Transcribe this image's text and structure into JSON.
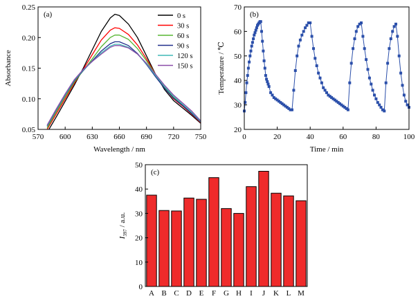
{
  "chart_data": [
    {
      "id": "a",
      "panel_label": "(a)",
      "type": "line",
      "xlabel": "Wavelength / nm",
      "ylabel": "Absorbance",
      "xlim": [
        570,
        750
      ],
      "ylim": [
        0.05,
        0.25
      ],
      "xticks": [
        570,
        600,
        630,
        660,
        690,
        720,
        750
      ],
      "yticks": [
        0.05,
        0.1,
        0.15,
        0.2,
        0.25
      ],
      "ytick_labels": [
        "0.05",
        "0.10",
        "0.15",
        "0.20",
        "0.25"
      ],
      "legend_position": "top-right",
      "series": [
        {
          "name": "0 s",
          "color": "#000000",
          "x": [
            580,
            590,
            600,
            610,
            620,
            630,
            640,
            650,
            655,
            660,
            670,
            680,
            690,
            700,
            710,
            720,
            730,
            740,
            750
          ],
          "y": [
            0.045,
            0.07,
            0.096,
            0.122,
            0.15,
            0.18,
            0.21,
            0.232,
            0.238,
            0.236,
            0.222,
            0.2,
            0.17,
            0.14,
            0.115,
            0.097,
            0.085,
            0.073,
            0.06
          ]
        },
        {
          "name": "30 s",
          "color": "#ff0000",
          "x": [
            580,
            590,
            600,
            610,
            620,
            630,
            640,
            650,
            655,
            660,
            670,
            680,
            690,
            700,
            710,
            720,
            730,
            740,
            750
          ],
          "y": [
            0.05,
            0.075,
            0.1,
            0.125,
            0.148,
            0.172,
            0.196,
            0.212,
            0.216,
            0.215,
            0.205,
            0.188,
            0.165,
            0.14,
            0.118,
            0.1,
            0.088,
            0.075,
            0.061
          ]
        },
        {
          "name": "60 s",
          "color": "#56b531",
          "x": [
            580,
            590,
            600,
            610,
            620,
            630,
            640,
            650,
            655,
            660,
            670,
            680,
            690,
            700,
            710,
            720,
            730,
            740,
            750
          ],
          "y": [
            0.052,
            0.078,
            0.103,
            0.127,
            0.146,
            0.165,
            0.185,
            0.2,
            0.204,
            0.204,
            0.197,
            0.182,
            0.162,
            0.14,
            0.119,
            0.102,
            0.09,
            0.076,
            0.062
          ]
        },
        {
          "name": "90 s",
          "color": "#1f2e8a",
          "x": [
            580,
            590,
            600,
            610,
            620,
            630,
            640,
            650,
            655,
            660,
            670,
            680,
            690,
            700,
            710,
            720,
            730,
            740,
            750
          ],
          "y": [
            0.055,
            0.081,
            0.106,
            0.129,
            0.146,
            0.162,
            0.178,
            0.19,
            0.193,
            0.193,
            0.187,
            0.174,
            0.156,
            0.136,
            0.117,
            0.101,
            0.089,
            0.076,
            0.062
          ]
        },
        {
          "name": "120 s",
          "color": "#3fb9b5",
          "x": [
            580,
            590,
            600,
            610,
            620,
            630,
            640,
            650,
            655,
            660,
            670,
            680,
            690,
            700,
            710,
            720,
            730,
            740,
            750
          ],
          "y": [
            0.056,
            0.082,
            0.107,
            0.13,
            0.147,
            0.161,
            0.175,
            0.186,
            0.189,
            0.189,
            0.184,
            0.173,
            0.157,
            0.138,
            0.12,
            0.104,
            0.091,
            0.078,
            0.063
          ]
        },
        {
          "name": "150 s",
          "color": "#8a4aa8",
          "x": [
            580,
            590,
            600,
            610,
            620,
            630,
            640,
            650,
            655,
            660,
            670,
            680,
            690,
            700,
            710,
            720,
            730,
            740,
            750
          ],
          "y": [
            0.057,
            0.083,
            0.108,
            0.131,
            0.148,
            0.161,
            0.173,
            0.184,
            0.187,
            0.187,
            0.183,
            0.173,
            0.158,
            0.14,
            0.122,
            0.106,
            0.093,
            0.08,
            0.064
          ]
        }
      ]
    },
    {
      "id": "b",
      "panel_label": "(b)",
      "type": "line",
      "xlabel": "Time / min",
      "ylabel": "Temperature / ℃",
      "xlim": [
        0,
        100
      ],
      "ylim": [
        20,
        70
      ],
      "xticks": [
        0,
        20,
        40,
        60,
        80,
        100
      ],
      "yticks": [
        20,
        30,
        40,
        50,
        60,
        70
      ],
      "marker": "square",
      "series": [
        {
          "color": "#2b4faa",
          "x": [
            0,
            0.5,
            1,
            1.5,
            2,
            2.5,
            3,
            3.5,
            4,
            4.5,
            5,
            5.5,
            6,
            6.5,
            7,
            7.5,
            8,
            8.5,
            9,
            9.5,
            10,
            10.5,
            11,
            11.5,
            12,
            12.5,
            13,
            13.5,
            14,
            14.5,
            15,
            16,
            17,
            18,
            19,
            20,
            21,
            22,
            23,
            24,
            25,
            26,
            27,
            28,
            29,
            30,
            31,
            32,
            33,
            34,
            35,
            36,
            37,
            38,
            39,
            40,
            41,
            42,
            43,
            44,
            45,
            46,
            47,
            48,
            49,
            50,
            51,
            52,
            53,
            54,
            55,
            56,
            57,
            58,
            59,
            60,
            61,
            62,
            63,
            64,
            65,
            66,
            67,
            68,
            69,
            70,
            71,
            72,
            73,
            74,
            75,
            76,
            77,
            78,
            79,
            80,
            81,
            82,
            83,
            84,
            85,
            86,
            87,
            88,
            89,
            90,
            91,
            92,
            93,
            94,
            95,
            96,
            97,
            98,
            99,
            100
          ],
          "y": [
            27.5,
            31,
            35,
            39,
            42,
            45,
            47.5,
            50,
            52,
            54,
            55.5,
            57,
            58.5,
            59.5,
            60.5,
            61.5,
            62.5,
            63,
            63.5,
            64,
            64,
            60,
            56,
            52,
            48,
            45,
            42,
            40.5,
            39.5,
            38.5,
            37.5,
            35,
            34,
            33,
            32.5,
            32,
            31.5,
            31,
            30.5,
            30,
            29.5,
            29,
            28.5,
            28,
            28,
            36,
            44,
            50,
            54,
            56.5,
            58.5,
            60,
            61.5,
            62.5,
            63.5,
            63.5,
            58,
            53,
            49,
            46,
            43,
            41,
            39,
            37,
            36,
            35,
            34,
            33.5,
            33,
            32.5,
            32,
            31.5,
            31,
            30.5,
            30,
            29.5,
            29,
            28.5,
            28,
            39,
            47,
            53,
            57,
            60,
            62,
            63,
            63.5,
            58,
            53,
            48.5,
            44.5,
            41,
            38.5,
            36,
            34,
            32.5,
            31,
            30,
            29,
            28,
            27.5,
            39,
            47,
            53,
            57,
            60,
            62,
            63,
            58,
            50,
            43,
            38,
            34,
            31.5,
            30,
            29
          ]
        }
      ]
    },
    {
      "id": "c",
      "panel_label": "(c)",
      "type": "bar",
      "ylabel_main": "I",
      "ylabel_sub": "397",
      "ylabel_unit": " / a.u.",
      "ylim": [
        0,
        50
      ],
      "yticks": [
        0,
        10,
        20,
        30,
        40,
        50
      ],
      "bar_color": "#ef2b2b",
      "categories": [
        "A",
        "B",
        "C",
        "D",
        "E",
        "F",
        "G",
        "H",
        "I",
        "J",
        "K",
        "L",
        "M"
      ],
      "values": [
        37.5,
        31.2,
        31.0,
        36.3,
        35.8,
        44.7,
        32.0,
        30.0,
        41.0,
        47.3,
        38.3,
        37.2,
        35.2
      ]
    }
  ]
}
